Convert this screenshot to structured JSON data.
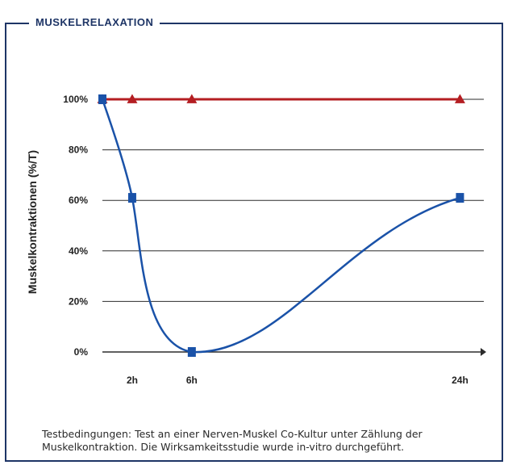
{
  "title": "MUSKELRELAXATION",
  "footnote": "Testbedingungen: Test an einer Nerven-Muskel Co-Kultur unter Zählung der Muskelkontraktion. Die Wirksamkeitsstudie wurde in-vitro durchgeführt.",
  "colors": {
    "frame": "#1e3566",
    "grid": "#2b2b2b",
    "series_blue": "#1a52a8",
    "series_red": "#b41e22"
  },
  "chart_data": {
    "type": "line",
    "ylabel": "Muskelkontraktionen (%/T)",
    "ylim": [
      0,
      100
    ],
    "yticks": [
      {
        "value": 0,
        "label": "0%"
      },
      {
        "value": 20,
        "label": "20%"
      },
      {
        "value": 40,
        "label": "40%"
      },
      {
        "value": 60,
        "label": "60%"
      },
      {
        "value": 80,
        "label": "80%"
      },
      {
        "value": 100,
        "label": "100%"
      }
    ],
    "xlim": [
      0,
      25.6
    ],
    "xticks": [
      {
        "value": 2,
        "label": "2h"
      },
      {
        "value": 6,
        "label": "6h"
      },
      {
        "value": 24,
        "label": "24h"
      }
    ],
    "grid": true,
    "series": [
      {
        "color": "#b41e22",
        "marker": "triangle",
        "x": [
          0,
          2,
          6,
          24
        ],
        "y": [
          100,
          100,
          100,
          100
        ]
      },
      {
        "color": "#1a52a8",
        "marker": "square",
        "x": [
          0,
          2,
          6,
          24
        ],
        "y": [
          100,
          61,
          0,
          61
        ]
      }
    ]
  }
}
